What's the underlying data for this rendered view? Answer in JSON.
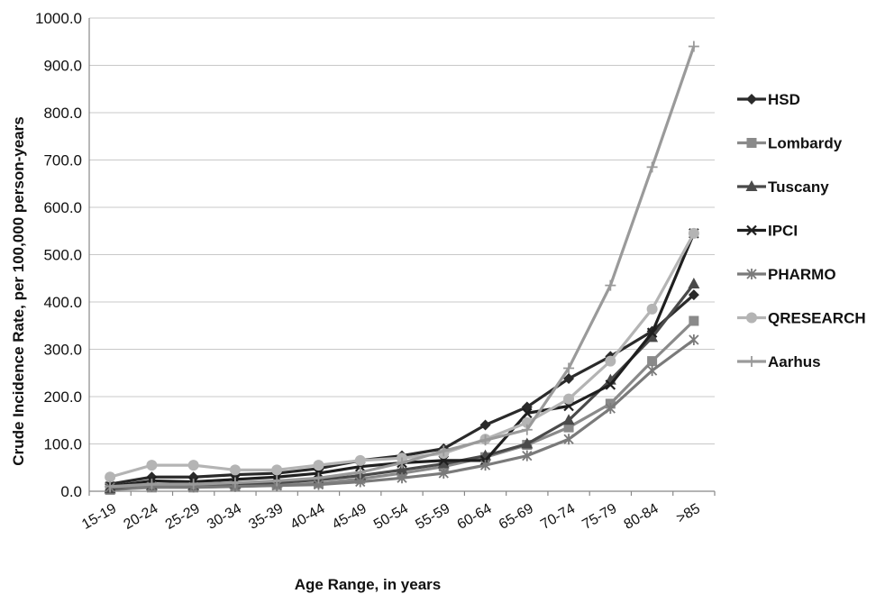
{
  "chart_data": {
    "type": "line",
    "title": "",
    "xlabel": "Age Range, in years",
    "ylabel": "Crude Incidence Rate, per 100,000 person-years",
    "ylim": [
      0,
      1000
    ],
    "y_ticks": [
      "0.0",
      "100.0",
      "200.0",
      "300.0",
      "400.0",
      "500.0",
      "600.0",
      "700.0",
      "800.0",
      "900.0",
      "1000.0"
    ],
    "grid": true,
    "legend_position": "right",
    "categories": [
      "15-19",
      "20-24",
      "25-29",
      "30-34",
      "35-39",
      "40-44",
      "45-49",
      "50-54",
      "55-59",
      "60-64",
      "65-69",
      "70-74",
      "75-79",
      "80-84",
      ">85"
    ],
    "series": [
      {
        "name": "HSD",
        "color": "#2a2a2a",
        "marker": "diamond",
        "values": [
          15,
          30,
          30,
          35,
          38,
          48,
          65,
          75,
          90,
          140,
          178,
          238,
          285,
          338,
          415
        ]
      },
      {
        "name": "Lombardy",
        "color": "#8a8a8a",
        "marker": "square",
        "values": [
          3,
          8,
          8,
          10,
          13,
          17,
          26,
          38,
          52,
          72,
          98,
          135,
          185,
          275,
          360
        ]
      },
      {
        "name": "Tuscany",
        "color": "#4a4a4a",
        "marker": "triangle",
        "values": [
          5,
          12,
          12,
          15,
          18,
          24,
          33,
          45,
          58,
          75,
          100,
          150,
          235,
          325,
          438
        ]
      },
      {
        "name": "IPCI",
        "color": "#1f1f1f",
        "marker": "x",
        "values": [
          10,
          22,
          20,
          25,
          30,
          38,
          52,
          60,
          65,
          65,
          165,
          180,
          225,
          335,
          545
        ]
      },
      {
        "name": "PHARMO",
        "color": "#7a7a7a",
        "marker": "star",
        "values": [
          8,
          10,
          9,
          10,
          12,
          14,
          20,
          28,
          38,
          55,
          75,
          110,
          175,
          255,
          320
        ]
      },
      {
        "name": "QRESEARCH",
        "color": "#b4b4b4",
        "marker": "circle",
        "values": [
          30,
          55,
          55,
          45,
          45,
          55,
          65,
          70,
          80,
          110,
          145,
          195,
          275,
          385,
          545
        ]
      },
      {
        "name": "Aarhus",
        "color": "#9a9a9a",
        "marker": "plus",
        "values": [
          10,
          15,
          15,
          18,
          22,
          28,
          40,
          60,
          85,
          108,
          130,
          260,
          435,
          685,
          940
        ]
      }
    ]
  }
}
